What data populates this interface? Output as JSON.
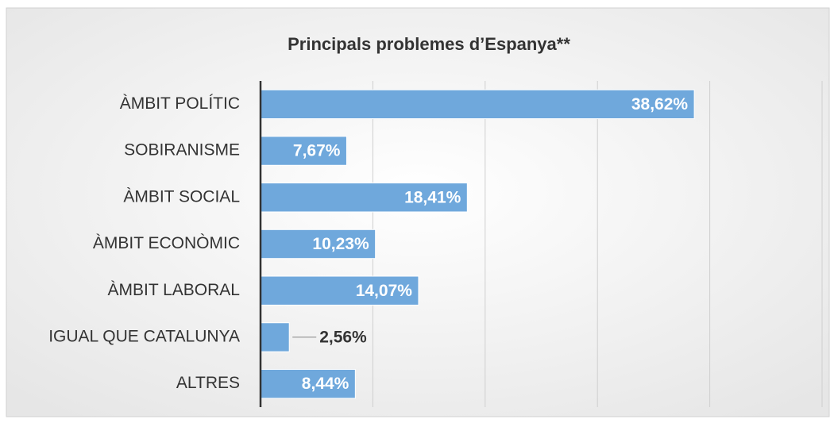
{
  "chart_data": {
    "type": "barh",
    "title": "Principals problemes d’Espanya**",
    "categories": [
      "ÀMBIT POLÍTIC",
      "SOBIRANISME",
      "ÀMBIT SOCIAL",
      "ÀMBIT ECONÒMIC",
      "ÀMBIT LABORAL",
      "IGUAL QUE CATALUNYA",
      "ALTRES"
    ],
    "values": [
      38.62,
      7.67,
      18.41,
      10.23,
      14.07,
      2.56,
      8.44
    ],
    "value_labels": [
      "38,62%",
      "7,67%",
      "18,41%",
      "10,23%",
      "14,07%",
      "2,56%",
      "8,44%"
    ],
    "color": "#6fa8dc",
    "xlim": [
      0,
      50
    ],
    "xticks": [
      0,
      10,
      20,
      30,
      40,
      50
    ],
    "grid": true
  }
}
